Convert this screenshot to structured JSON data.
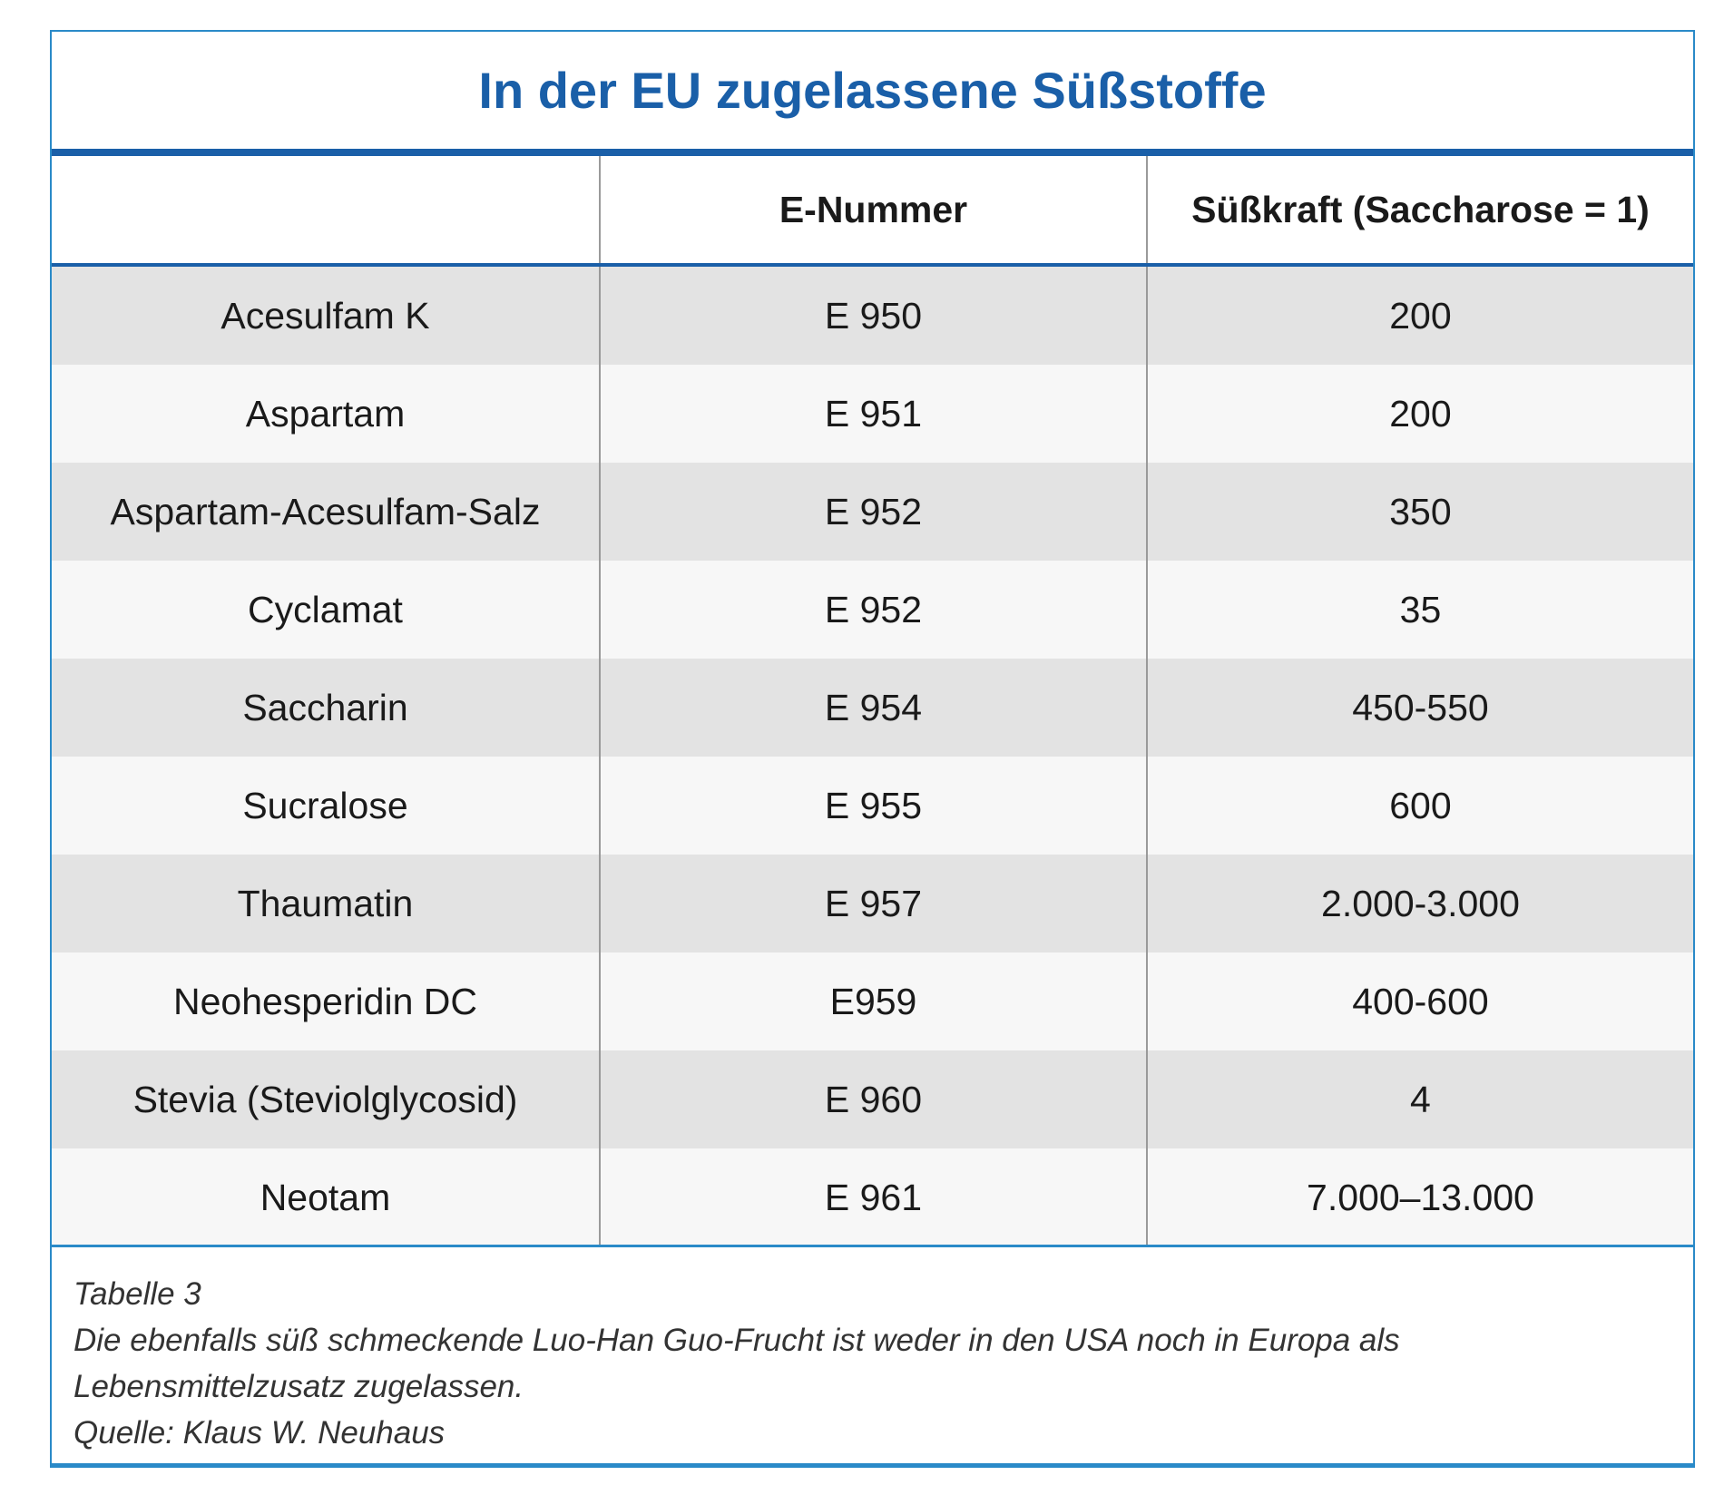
{
  "title": "In der EU zugelassene Süßstoffe",
  "headers": [
    "",
    "E-Nummer",
    "Süßkraft (Saccharose = 1)"
  ],
  "rows": [
    {
      "name": "Acesulfam K",
      "e_number": "E 950",
      "sweetness": "200"
    },
    {
      "name": "Aspartam",
      "e_number": "E 951",
      "sweetness": "200"
    },
    {
      "name": "Aspartam-Acesulfam-Salz",
      "e_number": "E 952",
      "sweetness": "350"
    },
    {
      "name": "Cyclamat",
      "e_number": "E 952",
      "sweetness": "35"
    },
    {
      "name": "Saccharin",
      "e_number": "E 954",
      "sweetness": "450-550"
    },
    {
      "name": "Sucralose",
      "e_number": "E 955",
      "sweetness": "600"
    },
    {
      "name": "Thaumatin",
      "e_number": "E 957",
      "sweetness": "2.000-3.000"
    },
    {
      "name": "Neohesperidin DC",
      "e_number": "E959",
      "sweetness": "400-600"
    },
    {
      "name": "Stevia (Steviolglycosid)",
      "e_number": "E 960",
      "sweetness": "4"
    },
    {
      "name": "Neotam",
      "e_number": "E 961",
      "sweetness": "7.000–13.000"
    }
  ],
  "caption": {
    "label": "Tabelle 3",
    "line1": "Die ebenfalls süß schmeckende Luo-Han Guo-Frucht ist weder in den USA noch in Europa als",
    "line2": "Lebensmittelzusatz zugelassen.",
    "source": "Quelle: Klaus W. Neuhaus"
  },
  "colors": {
    "title": "#1a5fa8",
    "border": "#2a8ac8",
    "row_dark": "#e3e3e3",
    "row_light": "#f7f7f7"
  }
}
